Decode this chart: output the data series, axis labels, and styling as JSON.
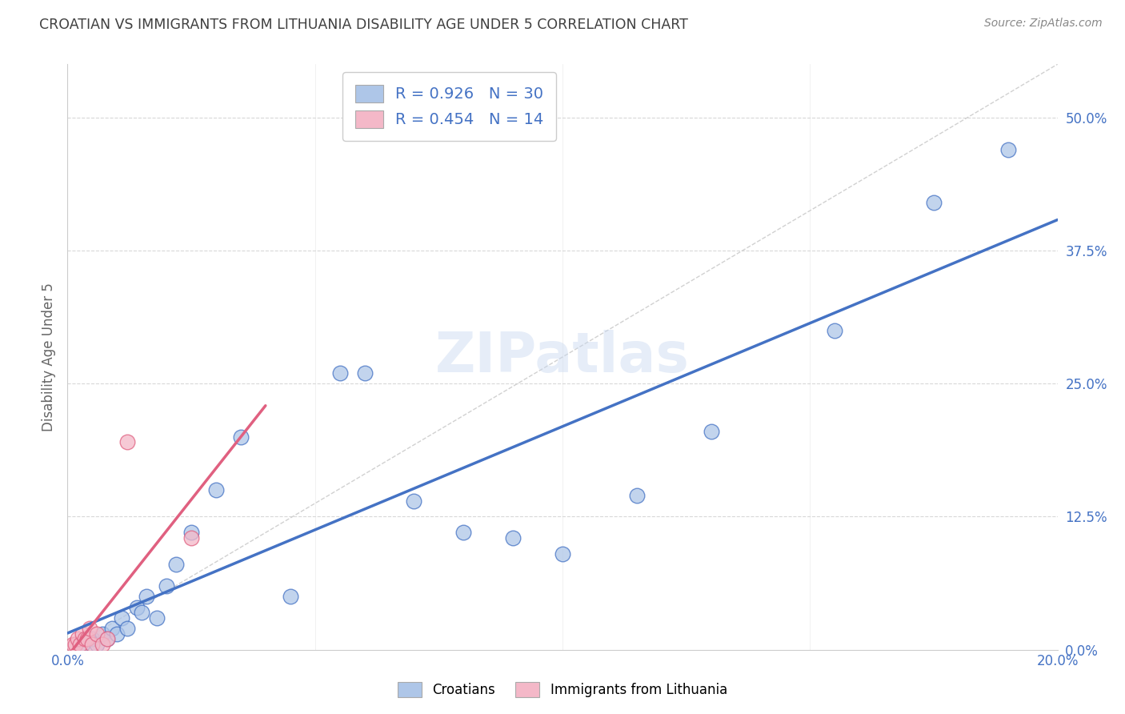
{
  "title": "CROATIAN VS IMMIGRANTS FROM LITHUANIA DISABILITY AGE UNDER 5 CORRELATION CHART",
  "source": "Source: ZipAtlas.com",
  "ylabel": "Disability Age Under 5",
  "xlim": [
    0.0,
    20.0
  ],
  "ylim": [
    0.0,
    55.0
  ],
  "yticks": [
    0.0,
    12.5,
    25.0,
    37.5,
    50.0
  ],
  "xticks": [
    0.0,
    5.0,
    10.0,
    15.0,
    20.0
  ],
  "blue_R": 0.926,
  "blue_N": 30,
  "pink_R": 0.454,
  "pink_N": 14,
  "blue_color": "#aec6e8",
  "blue_line_color": "#4472c4",
  "pink_color": "#f4b8c8",
  "pink_line_color": "#e06080",
  "legend_blue_label": "Croatians",
  "legend_pink_label": "Immigrants from Lithuania",
  "watermark": "ZIPatlas",
  "blue_scatter_x": [
    0.3,
    0.5,
    0.6,
    0.7,
    0.8,
    0.9,
    1.0,
    1.1,
    1.2,
    1.4,
    1.5,
    1.6,
    1.8,
    2.0,
    2.2,
    2.5,
    3.0,
    3.5,
    4.5,
    5.5,
    6.0,
    7.0,
    8.0,
    9.0,
    10.0,
    11.5,
    13.0,
    15.5,
    17.5,
    19.0
  ],
  "blue_scatter_y": [
    0.5,
    1.0,
    0.5,
    1.5,
    1.0,
    2.0,
    1.5,
    3.0,
    2.0,
    4.0,
    3.5,
    5.0,
    3.0,
    6.0,
    8.0,
    11.0,
    15.0,
    20.0,
    5.0,
    26.0,
    26.0,
    14.0,
    11.0,
    10.5,
    9.0,
    14.5,
    20.5,
    30.0,
    42.0,
    47.0
  ],
  "pink_scatter_x": [
    0.1,
    0.15,
    0.2,
    0.25,
    0.3,
    0.35,
    0.4,
    0.45,
    0.5,
    0.6,
    0.7,
    0.8,
    1.2,
    2.5
  ],
  "pink_scatter_y": [
    0.5,
    0.5,
    1.0,
    0.5,
    1.5,
    1.0,
    1.0,
    2.0,
    0.5,
    1.5,
    0.5,
    1.0,
    19.5,
    10.5
  ],
  "background_color": "#ffffff",
  "grid_color": "#d8d8d8",
  "title_color": "#404040",
  "text_color_blue": "#4472c4",
  "tick_label_color": "#4472c4"
}
